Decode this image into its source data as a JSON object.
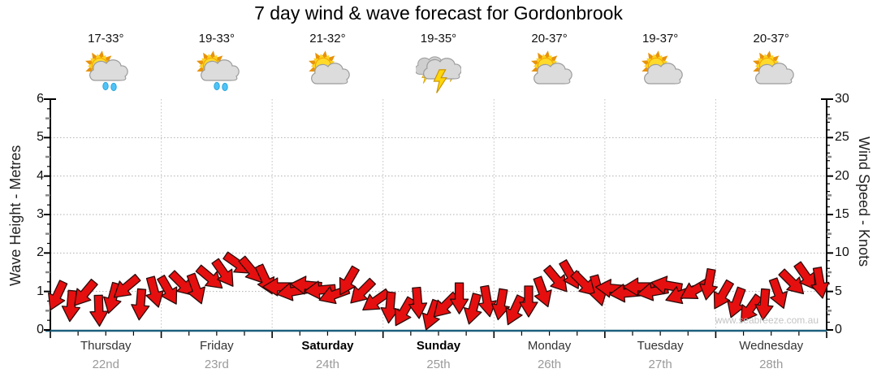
{
  "title": "7 day wind & wave forecast for Gordonbrook",
  "watermark": "www.seabreeze.com.au",
  "colors": {
    "arrow_fill": "#e60f0f",
    "arrow_outline": "#2b0b0b",
    "x_axis_line": "#1e5f7d",
    "axis_line": "#000000",
    "gridline": "#b0b0b0",
    "day_separator": "#c0c0c0",
    "date_text": "#9a9a9a",
    "watermark_text": "#c4c4c4"
  },
  "days": [
    {
      "name": "Thursday",
      "date": "22nd",
      "temp": "17-33°",
      "icon": "sun-cloud-rain",
      "bold": false
    },
    {
      "name": "Friday",
      "date": "23rd",
      "temp": "19-33°",
      "icon": "sun-cloud-rain",
      "bold": false
    },
    {
      "name": "Saturday",
      "date": "24th",
      "temp": "21-32°",
      "icon": "sun-cloud",
      "bold": true
    },
    {
      "name": "Sunday",
      "date": "25th",
      "temp": "19-35°",
      "icon": "storm",
      "bold": true
    },
    {
      "name": "Monday",
      "date": "26th",
      "temp": "20-37°",
      "icon": "sun-cloud",
      "bold": false
    },
    {
      "name": "Tuesday",
      "date": "27th",
      "temp": "19-37°",
      "icon": "sun-cloud",
      "bold": false
    },
    {
      "name": "Wednesday",
      "date": "28th",
      "temp": "20-37°",
      "icon": "sun-cloud",
      "bold": false
    }
  ],
  "axes": {
    "left": {
      "label": "Wave Height - Metres",
      "ticks": [
        0,
        1,
        2,
        3,
        4,
        5,
        6
      ],
      "range": [
        0,
        6
      ]
    },
    "right": {
      "label": "Wind Speed - Knots",
      "ticks": [
        0,
        5,
        10,
        15,
        20,
        25,
        30
      ],
      "range": [
        0,
        30
      ]
    }
  },
  "chart_data": {
    "type": "scatter",
    "subtype": "wind-direction-arrow-band",
    "title": "7 day wind & wave forecast for Gordonbrook",
    "x_axis": {
      "categories": [
        "Thursday 22nd",
        "Friday 23rd",
        "Saturday 24th",
        "Sunday 25th",
        "Monday 26th",
        "Tuesday 27th",
        "Wednesday 28th"
      ],
      "slots_per_day": 8,
      "slot_hours": 3,
      "minor_tick_hours": 6
    },
    "y_left": {
      "label": "Wave Height - Metres",
      "range": [
        0,
        6
      ],
      "ticks": [
        0,
        1,
        2,
        3,
        4,
        5,
        6
      ],
      "gridlines": [
        1,
        2,
        3,
        4,
        5
      ],
      "grid_style": "dotted"
    },
    "y_right": {
      "label": "Wind Speed - Knots",
      "range": [
        0,
        30
      ],
      "ticks": [
        0,
        5,
        10,
        15,
        20,
        25,
        30
      ]
    },
    "wave_height_m": {
      "note": "flat line at 0 m across all 7 days",
      "value": 0
    },
    "wind_arrows": {
      "marker": "red block arrow, direction = where arrow points, degrees clockwise from east",
      "days": [
        {
          "day": "Thursday",
          "knots": [
            4.5,
            3.2,
            4.8,
            2.6,
            4.2,
            5.6,
            3.4,
            5.0
          ],
          "dir": [
            115,
            95,
            130,
            88,
            105,
            140,
            95,
            75
          ]
        },
        {
          "day": "Friday",
          "knots": [
            5.2,
            6.0,
            5.4,
            6.8,
            7.4,
            8.6,
            7.8,
            6.6
          ],
          "dir": [
            60,
            45,
            70,
            40,
            55,
            35,
            50,
            65
          ]
        },
        {
          "day": "Saturday",
          "knots": [
            5.6,
            5.0,
            5.8,
            5.2,
            4.6,
            6.4,
            5.0,
            3.8
          ],
          "dir": [
            180,
            170,
            185,
            175,
            160,
            120,
            135,
            145
          ]
        },
        {
          "day": "Sunday",
          "knots": [
            3.0,
            2.4,
            3.6,
            2.0,
            3.2,
            4.2,
            2.8,
            3.8
          ],
          "dir": [
            95,
            120,
            85,
            110,
            135,
            90,
            105,
            80
          ]
        },
        {
          "day": "Monday",
          "knots": [
            3.4,
            2.6,
            3.8,
            5.0,
            6.6,
            7.2,
            6.0,
            5.2
          ],
          "dir": [
            100,
            115,
            90,
            70,
            50,
            60,
            45,
            75
          ]
        },
        {
          "day": "Tuesday",
          "knots": [
            5.4,
            4.8,
            5.6,
            5.0,
            5.8,
            4.6,
            5.2,
            6.0
          ],
          "dir": [
            185,
            175,
            180,
            170,
            190,
            160,
            150,
            100
          ]
        },
        {
          "day": "Wednesday",
          "knots": [
            4.6,
            3.6,
            2.8,
            3.4,
            4.8,
            6.2,
            7.0,
            6.2
          ],
          "dir": [
            120,
            110,
            125,
            95,
            70,
            45,
            55,
            80
          ]
        }
      ]
    }
  }
}
